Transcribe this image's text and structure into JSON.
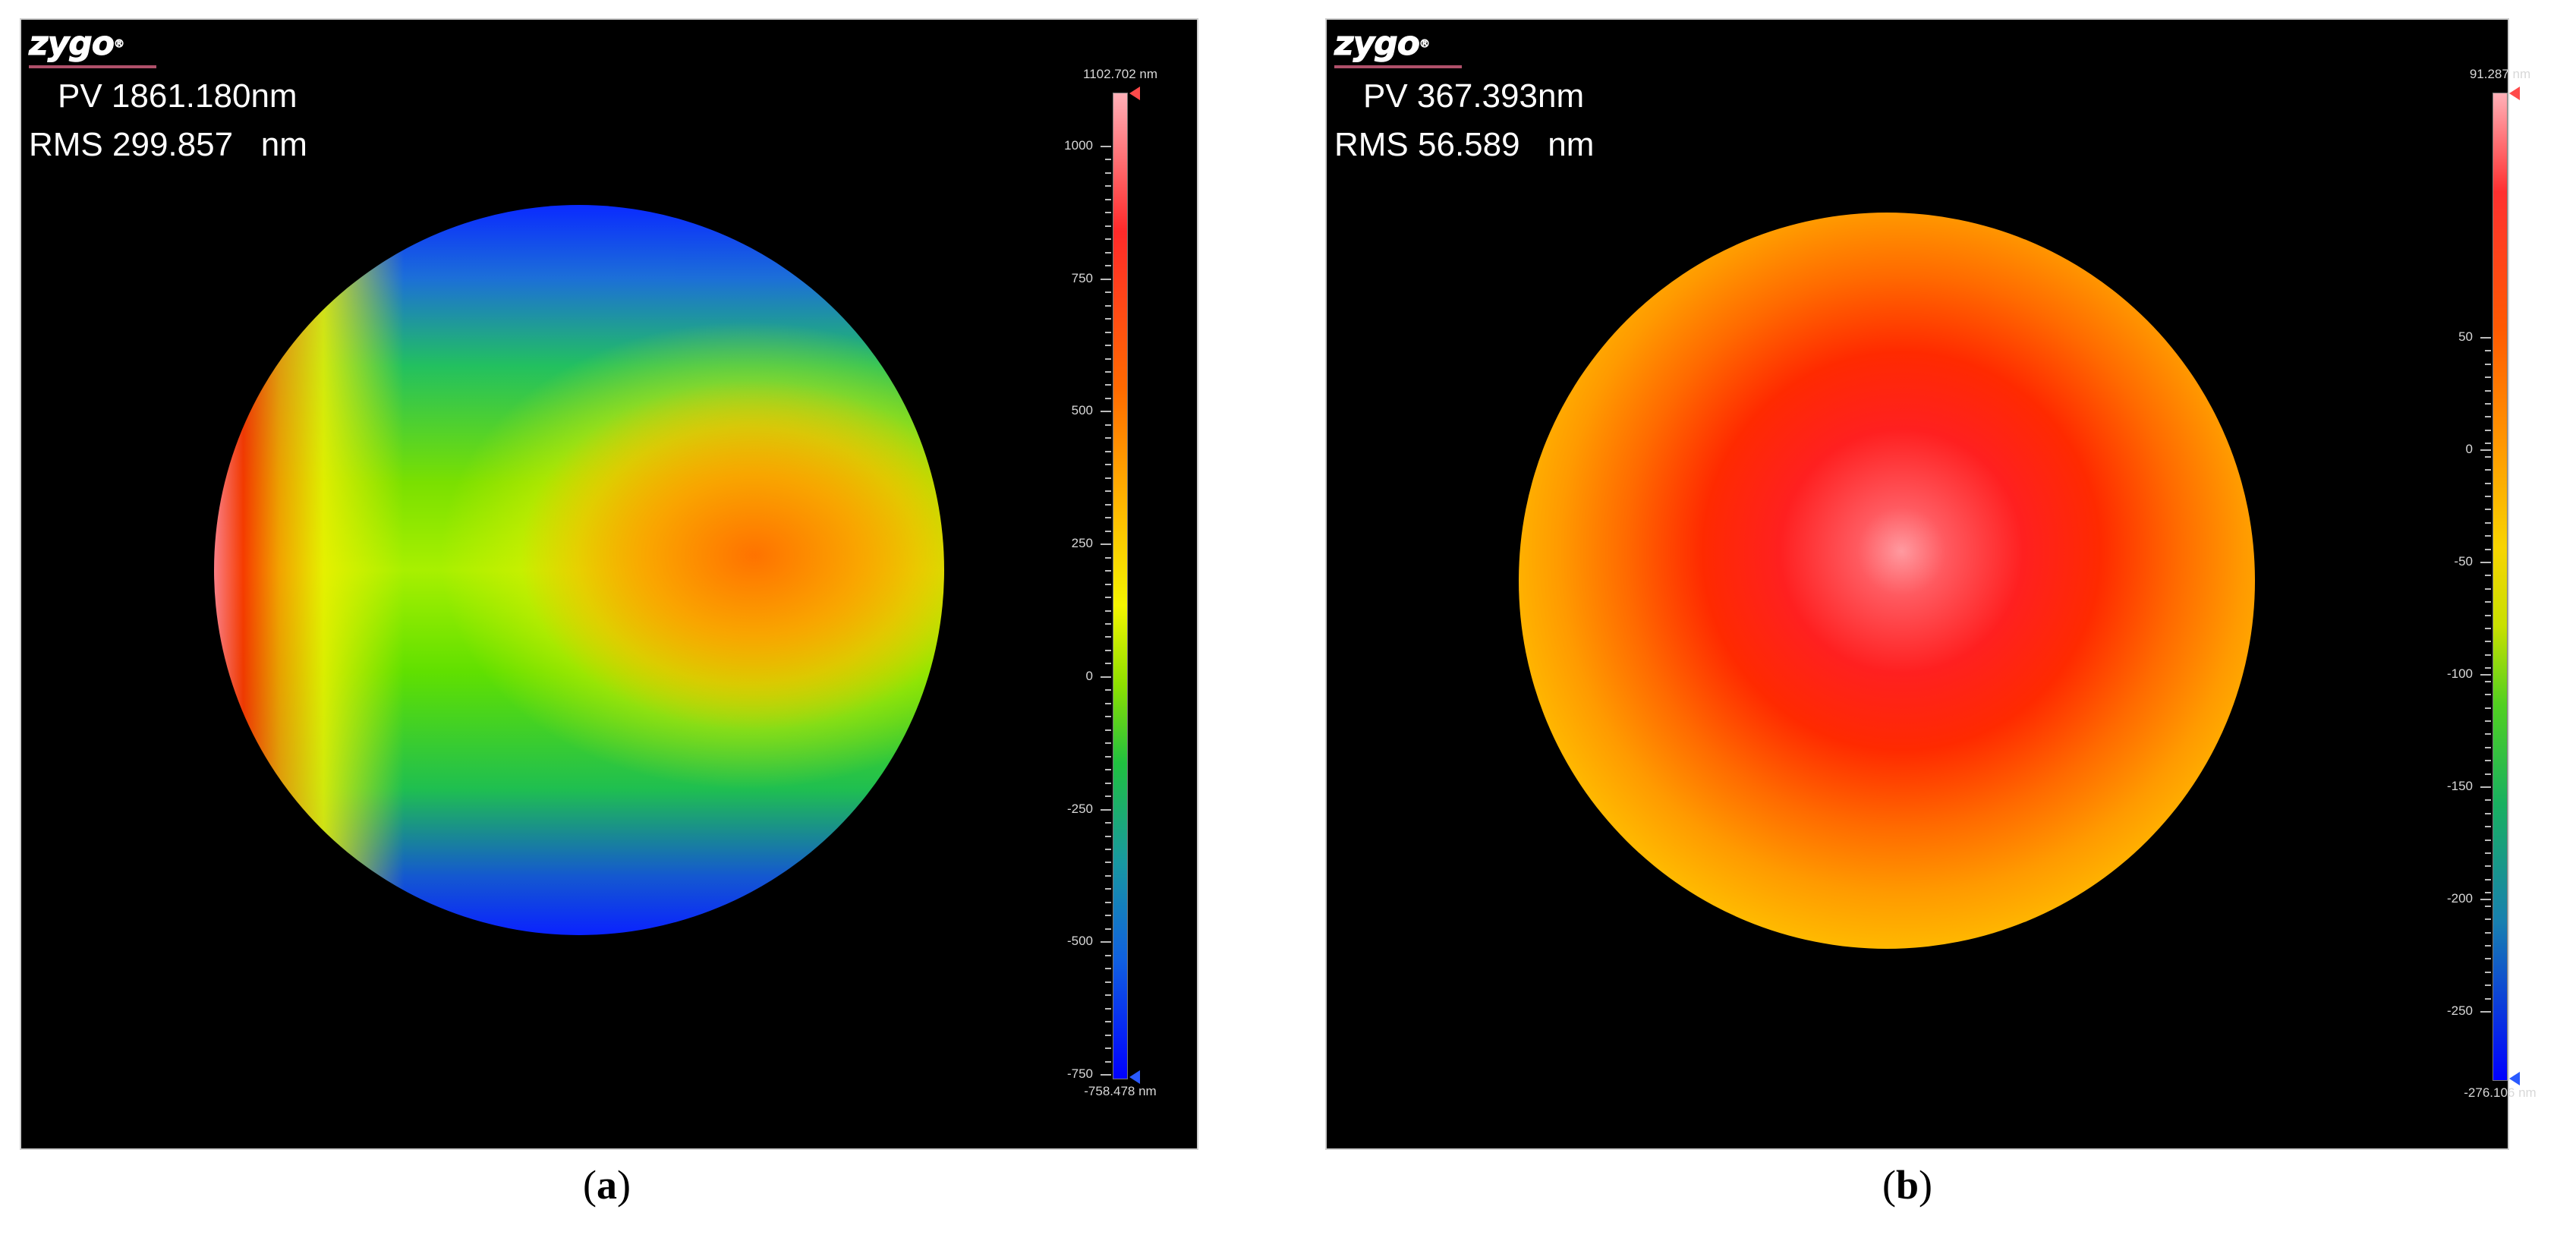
{
  "panels": [
    {
      "id": "a",
      "logo": "zygo",
      "logo_mark": "®",
      "pv_text": "PV 1861.180nm",
      "rms_text": "RMS 299.857   nm",
      "colorbar": {
        "max_label": "1102.702 nm",
        "min_label": "-758.478 nm",
        "ticks": [
          "1000",
          "750",
          "500",
          "250",
          "0",
          "-250",
          "-500",
          "-750"
        ],
        "max": 1102.702,
        "min": -758.478
      },
      "caption_open": "(",
      "caption_letter": "a",
      "caption_close": ")"
    },
    {
      "id": "b",
      "logo": "zygo",
      "logo_mark": "®",
      "pv_text": "PV 367.393nm",
      "rms_text": "RMS 56.589   nm",
      "colorbar": {
        "max_label": "91.287 nm",
        "min_label": "-276.106 nm",
        "ticks": [
          "50",
          "0",
          "-50",
          "-100",
          "-150",
          "-200",
          "-250"
        ],
        "max": 91.287,
        "min": -276.106
      },
      "caption_open": "(",
      "caption_letter": "b",
      "caption_close": ")"
    }
  ],
  "colors": {
    "panel_background": "#000000",
    "logo_underline": "#b0506a"
  }
}
